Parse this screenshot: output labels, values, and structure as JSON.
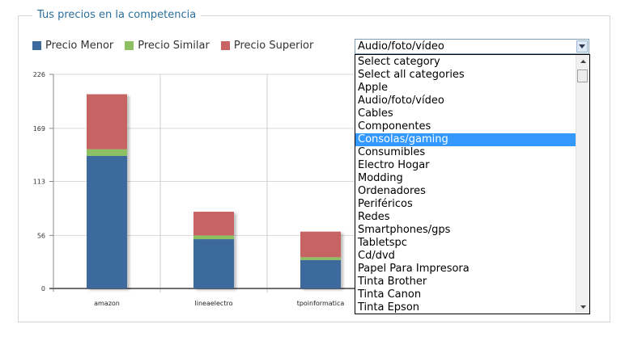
{
  "panel": {
    "title": "Tus precios en la competencia"
  },
  "legend": [
    {
      "label": "Precio Menor",
      "color": "#3d6a9d"
    },
    {
      "label": "Precio Similar",
      "color": "#8cc063"
    },
    {
      "label": "Precio Superior",
      "color": "#c86464"
    }
  ],
  "chart_data": {
    "type": "bar",
    "stacked": true,
    "categories": [
      "amazon",
      "lineaelectro",
      "tpoinformatica"
    ],
    "series": [
      {
        "name": "Precio Menor",
        "color": "#3d6a9d",
        "values": [
          140,
          52,
          30
        ]
      },
      {
        "name": "Precio Similar",
        "color": "#8cc063",
        "values": [
          7,
          4,
          3
        ]
      },
      {
        "name": "Precio Superior",
        "color": "#c86464",
        "values": [
          58,
          25,
          27
        ]
      }
    ],
    "yticks": [
      0,
      56,
      113,
      169,
      226
    ],
    "ylim": [
      0,
      226
    ],
    "grid": true,
    "legend_position": "top-left"
  },
  "category_select": {
    "selected": "Audio/foto/vídeo",
    "highlighted": "Consolas/gaming",
    "options": [
      "Select category",
      "Select all categories",
      "Apple",
      "Audio/foto/vídeo",
      "Cables",
      "Componentes",
      "Consolas/gaming",
      "Consumibles",
      "Electro Hogar",
      "Modding",
      "Ordenadores",
      "Periféricos",
      "Redes",
      "Smartphones/gps",
      "Tabletspc",
      "Cd/dvd",
      "Papel Para Impresora",
      "Tinta Brother",
      "Tinta Canon",
      "Tinta Epson"
    ]
  }
}
